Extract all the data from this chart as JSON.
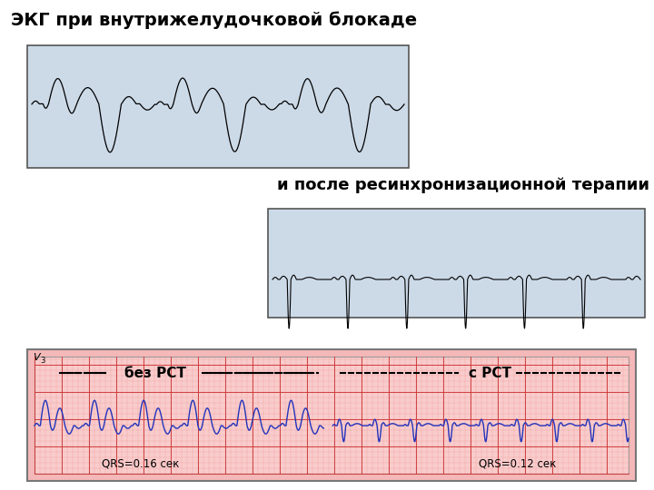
{
  "title1": "ЭКГ при внутрижелудочковой блокаде",
  "title2": "и после ресинхронизационной терапии",
  "box1_bg": "#ccdae8",
  "box2_bg": "#ccdae8",
  "box3_bg": "#f5b8b8",
  "box3_inner_bg": "#f9cccc",
  "label_v3": "V",
  "label_v3_sub": "3",
  "label_bez": "без РСТ",
  "label_s": "с РСТ",
  "label_qrs1": "QRS=0.16 сек",
  "label_qrs2": "QRS=0.12 сек",
  "white_bg": "#ffffff",
  "ecg_color1": "#000000",
  "ecg_color3": "#2233bb",
  "grid_minor": "#ee9999",
  "grid_major": "#cc3333",
  "box_edge": "#555555"
}
